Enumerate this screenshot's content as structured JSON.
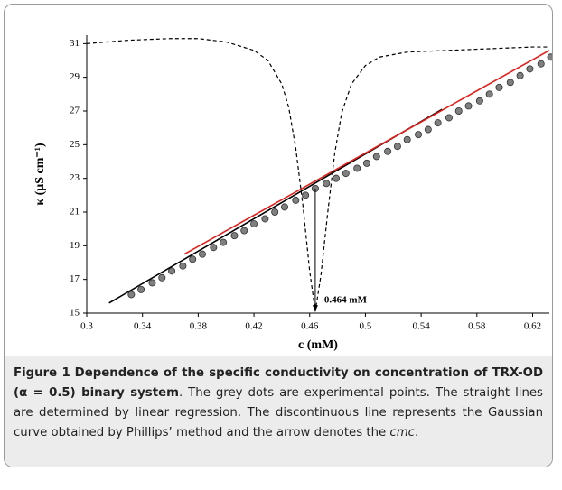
{
  "chart_data": {
    "type": "line",
    "x_label": "c (mM)",
    "y_label": "κ (μS cm⁻¹)",
    "xlim": [
      0.3,
      0.632
    ],
    "ylim": [
      15,
      31.5
    ],
    "xticks": [
      0.3,
      0.34,
      0.38,
      0.42,
      0.46,
      0.5,
      0.54,
      0.58,
      0.62
    ],
    "yticks": [
      15,
      17,
      19,
      21,
      23,
      25,
      27,
      29,
      31
    ],
    "series": [
      {
        "name": "experimental",
        "style": "dots",
        "color": "#7f7f7f",
        "x": [
          0.332,
          0.339,
          0.347,
          0.354,
          0.361,
          0.369,
          0.376,
          0.383,
          0.391,
          0.398,
          0.406,
          0.413,
          0.42,
          0.428,
          0.435,
          0.442,
          0.45,
          0.457,
          0.464,
          0.472,
          0.479,
          0.486,
          0.494,
          0.501,
          0.508,
          0.516,
          0.523,
          0.53,
          0.538,
          0.545,
          0.552,
          0.56,
          0.567,
          0.574,
          0.582,
          0.589,
          0.596,
          0.604,
          0.611,
          0.618,
          0.626,
          0.633
        ],
        "values": [
          16.1,
          16.4,
          16.8,
          17.1,
          17.5,
          17.8,
          18.2,
          18.5,
          18.9,
          19.2,
          19.6,
          19.9,
          20.3,
          20.6,
          21.0,
          21.3,
          21.7,
          22.0,
          22.4,
          22.7,
          23.0,
          23.3,
          23.6,
          23.9,
          24.3,
          24.6,
          24.9,
          25.3,
          25.6,
          25.9,
          26.3,
          26.6,
          27.0,
          27.3,
          27.6,
          28.0,
          28.4,
          28.7,
          29.1,
          29.5,
          29.8,
          30.2
        ]
      },
      {
        "name": "regression 1",
        "style": "solid",
        "color": "#000000",
        "x": [
          0.316,
          0.555
        ],
        "values": [
          15.6,
          27.1
        ]
      },
      {
        "name": "regression 2",
        "style": "solid",
        "color": "#e0201b",
        "x": [
          0.37,
          0.632
        ],
        "values": [
          18.5,
          30.6
        ]
      },
      {
        "name": "gaussian",
        "style": "dashed",
        "color": "#000000",
        "x": [
          0.3,
          0.33,
          0.36,
          0.38,
          0.4,
          0.42,
          0.43,
          0.44,
          0.445,
          0.45,
          0.455,
          0.46,
          0.464,
          0.468,
          0.473,
          0.478,
          0.483,
          0.49,
          0.5,
          0.51,
          0.53,
          0.56,
          0.59,
          0.62,
          0.632
        ],
        "values": [
          31.0,
          31.2,
          31.3,
          31.3,
          31.1,
          30.6,
          30.0,
          28.6,
          27.2,
          24.8,
          21.5,
          17.5,
          15.1,
          17.2,
          21.0,
          24.5,
          26.9,
          28.6,
          29.7,
          30.2,
          30.5,
          30.6,
          30.7,
          30.8,
          30.8
        ]
      }
    ],
    "arrow": {
      "x": 0.464,
      "y_from": 22.4,
      "y_to": 15.1,
      "label": "0.464 mM"
    }
  },
  "caption": {
    "figure_label": "Figure 1",
    "title": "Dependence of the specific conductivity on concentration of TRX-OD (α = 0.5) binary system",
    "body": ". The grey dots are experimental points. The straight lines are determined by linear regression. The discontinuous line represents the Gaussian curve obtained by Phillips’ method and the arrow denotes the ",
    "term": "cmc",
    "end": "."
  }
}
